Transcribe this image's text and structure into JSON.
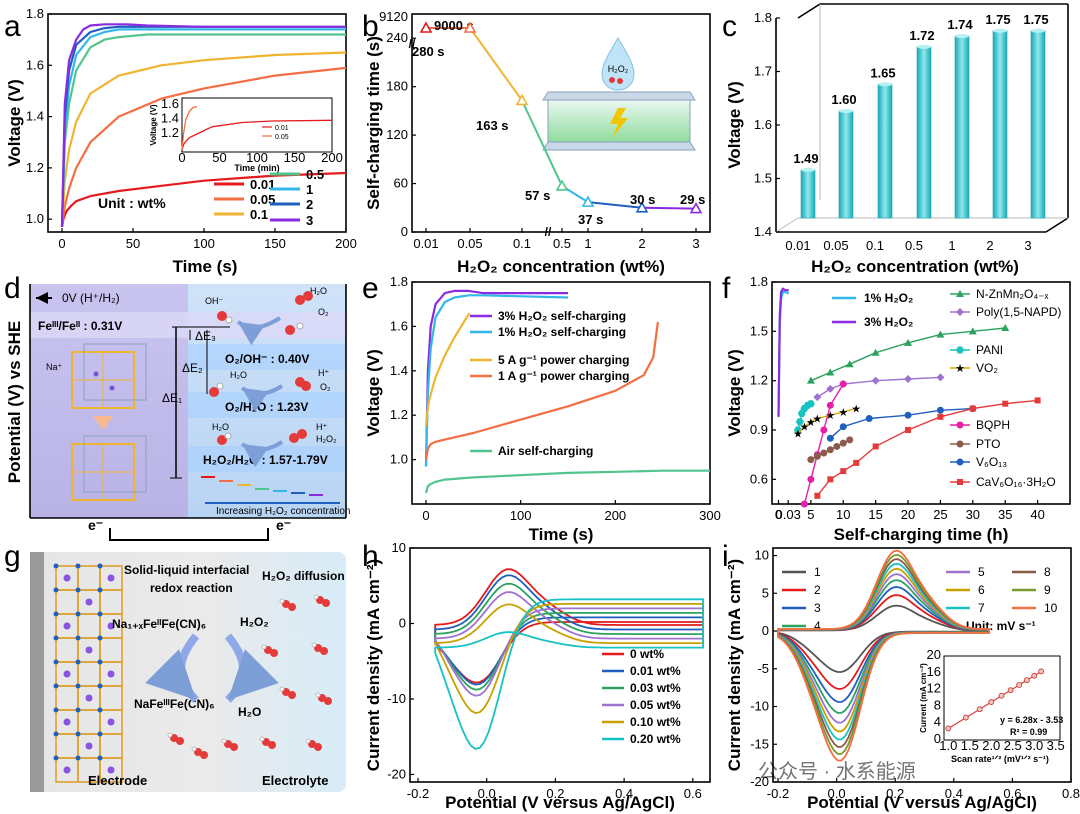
{
  "panel_letters": [
    "a",
    "b",
    "c",
    "d",
    "e",
    "f",
    "g",
    "h",
    "i"
  ],
  "chart_data": [
    {
      "id": "a",
      "type": "line",
      "xlabel": "Time (s)",
      "ylabel": "Voltage (V)",
      "xlim": [
        0,
        200
      ],
      "ylim": [
        0.95,
        1.8
      ],
      "xticks": [
        "0",
        "50",
        "100",
        "150",
        "200"
      ],
      "yticks": [
        "1.0",
        "1.2",
        "1.4",
        "1.6",
        "1.8"
      ],
      "unit_note": "Unit : wt%",
      "series": [
        {
          "name": "0.01",
          "color": "#e41a1c",
          "x": [
            0,
            1,
            3,
            6,
            10,
            20,
            40,
            70,
            100,
            150,
            200
          ],
          "y": [
            0.97,
            1.0,
            1.03,
            1.05,
            1.07,
            1.09,
            1.11,
            1.13,
            1.15,
            1.17,
            1.18
          ]
        },
        {
          "name": "0.05",
          "color": "#f46d43",
          "x": [
            0,
            2,
            5,
            10,
            20,
            40,
            70,
            100,
            150,
            200
          ],
          "y": [
            0.97,
            1.05,
            1.12,
            1.2,
            1.3,
            1.4,
            1.47,
            1.51,
            1.56,
            1.59
          ]
        },
        {
          "name": "0.1",
          "color": "#f0b530",
          "x": [
            0,
            2,
            5,
            10,
            20,
            40,
            70,
            100,
            150,
            200
          ],
          "y": [
            0.97,
            1.15,
            1.27,
            1.38,
            1.49,
            1.56,
            1.6,
            1.62,
            1.64,
            1.65
          ]
        },
        {
          "name": "0.5",
          "color": "#52c48d",
          "x": [
            0,
            2,
            5,
            10,
            20,
            30,
            40,
            60,
            100,
            150,
            200
          ],
          "y": [
            0.97,
            1.3,
            1.45,
            1.58,
            1.67,
            1.7,
            1.71,
            1.72,
            1.72,
            1.72,
            1.72
          ]
        },
        {
          "name": "1",
          "color": "#31b8e8",
          "x": [
            0,
            2,
            5,
            10,
            20,
            30,
            40,
            60,
            100,
            200
          ],
          "y": [
            0.97,
            1.35,
            1.52,
            1.64,
            1.71,
            1.73,
            1.74,
            1.74,
            1.74,
            1.74
          ]
        },
        {
          "name": "2",
          "color": "#1f5fbf",
          "x": [
            0,
            2,
            5,
            10,
            20,
            30,
            40,
            60,
            100,
            200
          ],
          "y": [
            0.97,
            1.4,
            1.58,
            1.68,
            1.73,
            1.745,
            1.75,
            1.75,
            1.75,
            1.75
          ]
        },
        {
          "name": "3",
          "color": "#8a2be2",
          "x": [
            0,
            2,
            5,
            10,
            15,
            20,
            30,
            45,
            60,
            100,
            200
          ],
          "y": [
            0.97,
            1.45,
            1.62,
            1.7,
            1.74,
            1.755,
            1.76,
            1.76,
            1.755,
            1.75,
            1.75
          ]
        }
      ],
      "inset": {
        "xlabel": "Time (min)",
        "ylabel": "Voltage (V)",
        "xticks": [
          "0",
          "50",
          "100",
          "150",
          "200"
        ],
        "yticks": [
          "1.2",
          "1.4",
          "1.6"
        ],
        "xlim": [
          0,
          200
        ],
        "ylim": [
          0.95,
          1.7
        ],
        "series": [
          {
            "name": "0.01",
            "color": "#e41a1c",
            "x": [
              0,
              2,
              5,
              10,
              20,
              40,
              80,
              120,
              200
            ],
            "y": [
              0.98,
              1.05,
              1.1,
              1.15,
              1.2,
              1.3,
              1.36,
              1.38,
              1.39
            ]
          },
          {
            "name": "0.05",
            "color": "#f46d43",
            "x": [
              0,
              2,
              5,
              10,
              15,
              20
            ],
            "y": [
              0.98,
              1.2,
              1.4,
              1.52,
              1.57,
              1.58
            ]
          }
        ]
      }
    },
    {
      "id": "b",
      "type": "line",
      "xlabel": "H₂O₂ concentration (wt%)",
      "ylabel": "Self-charging time (s)",
      "categories": [
        "0.01",
        "0.05",
        "0.1",
        "0.5",
        "1",
        "2",
        "3"
      ],
      "values": [
        9000,
        280,
        163,
        57,
        37,
        30,
        29
      ],
      "point_labels": [
        "9000 s",
        "280 s",
        "163 s",
        "57 s",
        "37 s",
        "30 s",
        "29 s"
      ],
      "yticks": [
        "0",
        "60",
        "120",
        "180",
        "240",
        "9120"
      ],
      "colors": [
        "#e41a1c",
        "#f46d43",
        "#f0b530",
        "#52c48d",
        "#31b8e8",
        "#1f5fbf",
        "#8a2be2"
      ],
      "inset_label": "H₂O₂"
    },
    {
      "id": "c",
      "type": "bar",
      "xlabel": "H₂O₂ concentration (wt%)",
      "ylabel": "Voltage (V)",
      "categories": [
        "0.01",
        "0.05",
        "0.1",
        "0.5",
        "1",
        "2",
        "3"
      ],
      "values": [
        1.49,
        1.6,
        1.65,
        1.72,
        1.74,
        1.75,
        1.75
      ],
      "value_labels": [
        "1.49",
        "1.60",
        "1.65",
        "1.72",
        "1.74",
        "1.75",
        "1.75"
      ],
      "ylim": [
        1.4,
        1.8
      ],
      "yticks": [
        "1.4",
        "1.5",
        "1.6",
        "1.7",
        "1.8"
      ],
      "bar_color": "#3cc4cc"
    },
    {
      "id": "d",
      "type": "diagram",
      "ylabel": "Potential (V) vs SHE",
      "top_ref": "0V (H⁺/H₂)",
      "couple": "Feᴵᴵᴵ/Feᴵᴵ : 0.31V",
      "levels": [
        "O₂/OH⁻ : 0.40V",
        "O₂/H₂O : 1.23V",
        "H₂O₂/H₂O : 1.57-1.79V"
      ],
      "deltas": [
        "ΔE₃",
        "ΔE₂",
        "ΔE₁"
      ],
      "species": [
        "OH⁻",
        "H₂O",
        "O₂",
        "H⁺",
        "H₂O",
        "O₂",
        "H₂O",
        "H⁺",
        "H₂O₂"
      ],
      "ion": "Na⁺",
      "footer": "Increasing H₂O₂ concentration",
      "electrons": [
        "e⁻",
        "e⁻"
      ]
    },
    {
      "id": "e",
      "type": "line",
      "xlabel": "Time (s)",
      "ylabel": "Voltage (V)",
      "xlim": [
        0,
        300
      ],
      "ylim": [
        0.8,
        1.8
      ],
      "xticks": [
        "0",
        "100",
        "200",
        "300"
      ],
      "yticks": [
        "1.0",
        "1.2",
        "1.4",
        "1.6",
        "1.8"
      ],
      "series": [
        {
          "name": "3% H₂O₂ self-charging",
          "color": "#8a2be2",
          "x": [
            0,
            2,
            5,
            10,
            20,
            30,
            45,
            60,
            150
          ],
          "y": [
            0.97,
            1.4,
            1.6,
            1.7,
            1.75,
            1.76,
            1.76,
            1.75,
            1.75
          ]
        },
        {
          "name": "1% H₂O₂ self-charging",
          "color": "#31b8e8",
          "x": [
            0,
            2,
            5,
            10,
            20,
            30,
            45,
            60,
            150
          ],
          "y": [
            0.97,
            1.3,
            1.5,
            1.64,
            1.71,
            1.73,
            1.74,
            1.74,
            1.73
          ]
        },
        {
          "name": "5 A g⁻¹ power charging",
          "color": "#f0b530",
          "x": [
            0,
            1,
            3,
            6,
            10,
            20,
            30,
            40,
            46
          ],
          "y": [
            1.15,
            1.2,
            1.26,
            1.31,
            1.37,
            1.47,
            1.55,
            1.62,
            1.66
          ]
        },
        {
          "name": "1 A g⁻¹ power charging",
          "color": "#f46d43",
          "x": [
            0,
            2,
            5,
            10,
            20,
            50,
            100,
            150,
            200,
            230,
            240,
            245
          ],
          "y": [
            1.0,
            1.05,
            1.07,
            1.08,
            1.09,
            1.12,
            1.18,
            1.24,
            1.31,
            1.38,
            1.46,
            1.62
          ]
        },
        {
          "name": "Air self-charging",
          "color": "#52c48d",
          "x": [
            0,
            2,
            5,
            10,
            20,
            50,
            100,
            150,
            200,
            250,
            300
          ],
          "y": [
            0.85,
            0.88,
            0.89,
            0.9,
            0.91,
            0.92,
            0.93,
            0.94,
            0.945,
            0.95,
            0.95
          ]
        }
      ]
    },
    {
      "id": "f",
      "type": "scatter",
      "xlabel": "Self-charging time (h)",
      "ylabel": "Voltage (V)",
      "xlim": [
        -1,
        45
      ],
      "ylim": [
        0.45,
        1.8
      ],
      "xticks": [
        "0",
        "0.03",
        "5",
        "10",
        "15",
        "20",
        "25",
        "30",
        "35",
        "40"
      ],
      "yticks": [
        "0.6",
        "0.9",
        "1.2",
        "1.5",
        "1.8"
      ],
      "lines": [
        {
          "name": "1% H₂O₂",
          "color": "#31b8e8",
          "label_color": "#e41a1c"
        },
        {
          "name": "3% H₂O₂",
          "color": "#8a2be2",
          "label_color": "#e41a1c"
        }
      ],
      "series": [
        {
          "name": "N-ZnMn₂O₄₋ₓ",
          "color": "#2ca25f",
          "marker": "triangle",
          "x": [
            5,
            8,
            11,
            15,
            20,
            25,
            30,
            35
          ],
          "y": [
            1.2,
            1.25,
            1.3,
            1.37,
            1.43,
            1.48,
            1.5,
            1.52
          ]
        },
        {
          "name": "Poly(1,5-NAPD)",
          "color": "#9e72cf",
          "marker": "diamond",
          "x": [
            6,
            8,
            10,
            15,
            20,
            25
          ],
          "y": [
            1.1,
            1.15,
            1.18,
            1.2,
            1.21,
            1.22
          ]
        },
        {
          "name": "PANI",
          "color": "#17c2c2",
          "marker": "hexagon",
          "x": [
            3,
            3.3,
            3.6,
            4,
            4.5,
            5
          ],
          "y": [
            0.9,
            0.95,
            1.0,
            1.03,
            1.05,
            1.06
          ]
        },
        {
          "name": "VO₂",
          "color": "#e0a800",
          "marker": "star",
          "x": [
            3,
            4,
            5,
            6,
            8,
            10,
            12
          ],
          "y": [
            0.88,
            0.92,
            0.95,
            0.97,
            0.99,
            1.01,
            1.03
          ]
        },
        {
          "name": "BQPH",
          "color": "#e81ea8",
          "marker": "circle",
          "x": [
            4,
            5,
            6,
            7,
            8,
            10
          ],
          "y": [
            0.45,
            0.6,
            0.75,
            0.9,
            1.05,
            1.18
          ]
        },
        {
          "name": "PTO",
          "color": "#8b5a4a",
          "marker": "circle",
          "x": [
            5,
            6,
            7,
            8,
            9,
            10,
            11
          ],
          "y": [
            0.72,
            0.74,
            0.76,
            0.78,
            0.8,
            0.82,
            0.84
          ]
        },
        {
          "name": "V₆O₁₃",
          "color": "#1f5fbf",
          "marker": "circle",
          "x": [
            8,
            10,
            14,
            20,
            25,
            30
          ],
          "y": [
            0.85,
            0.92,
            0.97,
            0.99,
            1.02,
            1.03
          ]
        },
        {
          "name": "CaV₆O₁₆·3H₂O",
          "color": "#e53a3a",
          "marker": "square",
          "x": [
            6,
            8,
            10,
            12,
            15,
            20,
            25,
            30,
            35,
            40
          ],
          "y": [
            0.5,
            0.6,
            0.65,
            0.7,
            0.8,
            0.9,
            0.98,
            1.03,
            1.06,
            1.08
          ]
        }
      ]
    },
    {
      "id": "g",
      "type": "diagram",
      "texts": [
        "Solid-liquid interfacial",
        "redox reaction",
        "H₂O₂ diffusion",
        "Na₁₊ₓFeᴵᴵFe(CN)₆",
        "H₂O₂",
        "NaFeᴵᴵᴵFe(CN)₆",
        "H₂O",
        "Electrode",
        "Electrolyte"
      ]
    },
    {
      "id": "h",
      "type": "line",
      "xlabel": "Potential (V versus Ag/AgCl)",
      "ylabel": "Current density (mA cm⁻²)",
      "xlim": [
        -0.2,
        0.65
      ],
      "ylim": [
        -21,
        10
      ],
      "xticks": [
        "-0.2",
        "0.0",
        "0.2",
        "0.4",
        "0.6"
      ],
      "yticks": [
        "-20",
        "-10",
        "0",
        "10"
      ],
      "series": [
        {
          "name": "0 wt%",
          "color": "#e41a1c"
        },
        {
          "name": "0.01 wt%",
          "color": "#1f5fbf"
        },
        {
          "name": "0.03 wt%",
          "color": "#2ca25f"
        },
        {
          "name": "0.05 wt%",
          "color": "#9e72cf"
        },
        {
          "name": "0.10 wt%",
          "color": "#c8a000"
        },
        {
          "name": "0.20 wt%",
          "color": "#17c2c2"
        }
      ]
    },
    {
      "id": "i",
      "type": "line",
      "xlabel": "Potential (V versus Ag/AgCl)",
      "ylabel": "Current density (mA cm⁻²)",
      "xlim": [
        -0.2,
        0.8
      ],
      "ylim": [
        -20,
        11
      ],
      "xticks": [
        "-0.2",
        "0.0",
        "0.2",
        "0.4",
        "0.6",
        "0.8"
      ],
      "yticks": [
        "-20",
        "-15",
        "-10",
        "-5",
        "0",
        "5",
        "10"
      ],
      "unit_note": "Unit: mV s⁻¹",
      "series": [
        {
          "name": "1",
          "color": "#555555"
        },
        {
          "name": "2",
          "color": "#e41a1c"
        },
        {
          "name": "3",
          "color": "#1f5fbf"
        },
        {
          "name": "4",
          "color": "#2ca25f"
        },
        {
          "name": "5",
          "color": "#9e72cf"
        },
        {
          "name": "6",
          "color": "#c8a000"
        },
        {
          "name": "7",
          "color": "#17c2c2"
        },
        {
          "name": "8",
          "color": "#8b5a4a"
        },
        {
          "name": "9",
          "color": "#7a9a2a"
        },
        {
          "name": "10",
          "color": "#f46d43"
        }
      ],
      "inset": {
        "xlabel": "Scan rate¹ᐟ² (mV¹ᐟ² s⁻¹)",
        "ylabel": "Current (mA cm⁻²)",
        "xticks": [
          "1.0",
          "1.5",
          "2.0",
          "2.5",
          "3.0",
          "3.5"
        ],
        "yticks": [
          "0",
          "4",
          "8",
          "12",
          "16",
          "20"
        ],
        "fit": "y = 6.28x - 3.53",
        "r2": "R² = 0.99",
        "x": [
          1.0,
          1.41,
          1.73,
          2.0,
          2.24,
          2.45,
          2.65,
          2.83,
          3.0,
          3.16
        ],
        "y": [
          2.75,
          5.34,
          7.34,
          9.03,
          10.54,
          11.86,
          13.1,
          14.24,
          15.31,
          16.33
        ]
      }
    }
  ],
  "watermark": "公众号 · 水系能源"
}
